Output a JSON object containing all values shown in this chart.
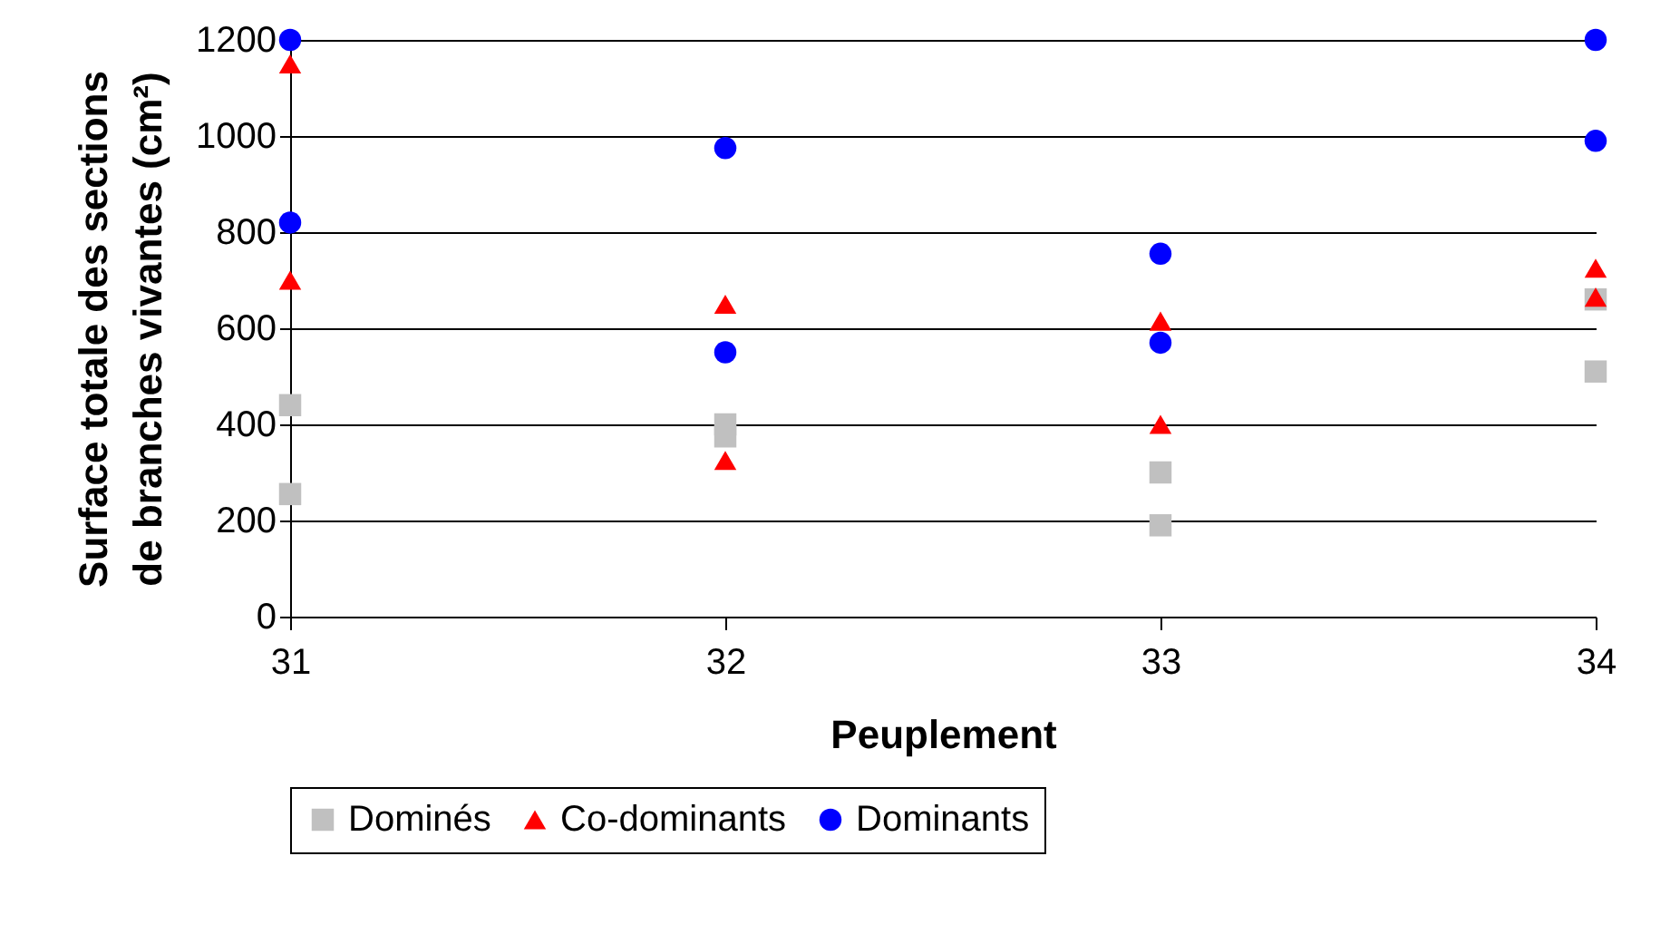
{
  "chart_data": {
    "type": "scatter",
    "xlabel": "Peuplement",
    "ylabel": "Surface totale des sections\nde branches vivantes (cm²)",
    "xlim": [
      31,
      34
    ],
    "xticks": [
      31,
      32,
      33,
      34
    ],
    "ylim": [
      0,
      1200
    ],
    "yticks": [
      0,
      200,
      400,
      600,
      800,
      1000,
      1200
    ],
    "grid": "y",
    "legend": "bottom",
    "series": [
      {
        "name": "Dominés",
        "color": "#c0c0c0",
        "marker": "square",
        "x": [
          31,
          31,
          32,
          32,
          33,
          33,
          34,
          34
        ],
        "values": [
          440,
          255,
          400,
          375,
          300,
          190,
          660,
          510
        ]
      },
      {
        "name": "Co-dominants",
        "color": "#ff0000",
        "marker": "triangle",
        "x": [
          31,
          31,
          32,
          32,
          33,
          33,
          34,
          34
        ],
        "values": [
          1150,
          700,
          650,
          325,
          615,
          400,
          725,
          665
        ]
      },
      {
        "name": "Dominants",
        "color": "#0000ff",
        "marker": "circle",
        "x": [
          31,
          31,
          32,
          32,
          33,
          33,
          34,
          34
        ],
        "values": [
          1200,
          820,
          975,
          550,
          755,
          570,
          1200,
          990
        ]
      }
    ]
  }
}
